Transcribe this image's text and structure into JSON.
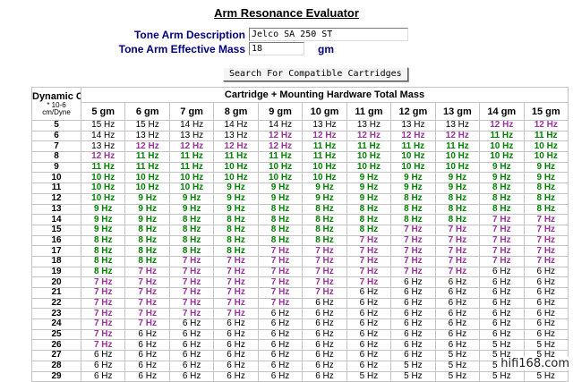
{
  "page": {
    "title": "Arm Resonance Evaluator",
    "watermark": "hifi168.com"
  },
  "form": {
    "description_label": "Tone Arm Description",
    "description_value": "Jelco SA 250 ST",
    "mass_label": "Tone Arm Effective Mass",
    "mass_value": "18",
    "mass_unit": "gm",
    "search_button": "Search For Compatible Cartridges"
  },
  "table": {
    "compliance_header": "Dynamic Compliance",
    "compliance_sub1": "* 10-6",
    "compliance_sub2": "cm/Dyne",
    "mass_header": "Cartridge + Mounting Hardware Total Mass",
    "mass_columns": [
      "5 gm",
      "6 gm",
      "7 gm",
      "8 gm",
      "9 gm",
      "10 gm",
      "11 gm",
      "12 gm",
      "13 gm",
      "14 gm",
      "15 gm"
    ],
    "unit_suffix": "Hz",
    "colors": {
      "ideal": "#008000",
      "marginal": "#993399",
      "normal": "#000000"
    },
    "color_rules": {
      "ideal_min": 8,
      "ideal_max": 11,
      "marginal_values": [
        7,
        12
      ]
    },
    "rows": [
      {
        "compliance": "5",
        "values": [
          15,
          15,
          14,
          14,
          14,
          13,
          13,
          13,
          13,
          12,
          12
        ]
      },
      {
        "compliance": "6",
        "values": [
          14,
          13,
          13,
          13,
          12,
          12,
          12,
          12,
          12,
          11,
          11
        ]
      },
      {
        "compliance": "7",
        "values": [
          13,
          12,
          12,
          12,
          12,
          11,
          11,
          11,
          11,
          10,
          10
        ]
      },
      {
        "compliance": "8",
        "values": [
          12,
          11,
          11,
          11,
          11,
          11,
          10,
          10,
          10,
          10,
          10
        ]
      },
      {
        "compliance": "9",
        "values": [
          11,
          11,
          11,
          10,
          10,
          10,
          10,
          10,
          10,
          9,
          9
        ]
      },
      {
        "compliance": "10",
        "values": [
          10,
          10,
          10,
          10,
          10,
          10,
          9,
          9,
          9,
          9,
          9
        ]
      },
      {
        "compliance": "11",
        "values": [
          10,
          10,
          10,
          9,
          9,
          9,
          9,
          9,
          9,
          8,
          8
        ]
      },
      {
        "compliance": "12",
        "values": [
          10,
          9,
          9,
          9,
          9,
          9,
          9,
          8,
          8,
          8,
          8
        ]
      },
      {
        "compliance": "13",
        "values": [
          9,
          9,
          9,
          9,
          8,
          8,
          8,
          8,
          8,
          8,
          8
        ]
      },
      {
        "compliance": "14",
        "values": [
          9,
          9,
          8,
          8,
          8,
          8,
          8,
          8,
          8,
          7,
          7
        ]
      },
      {
        "compliance": "15",
        "values": [
          9,
          8,
          8,
          8,
          8,
          8,
          8,
          7,
          7,
          7,
          7
        ]
      },
      {
        "compliance": "16",
        "values": [
          8,
          8,
          8,
          8,
          8,
          8,
          7,
          7,
          7,
          7,
          7
        ]
      },
      {
        "compliance": "17",
        "values": [
          8,
          8,
          8,
          8,
          7,
          7,
          7,
          7,
          7,
          7,
          7
        ]
      },
      {
        "compliance": "18",
        "values": [
          8,
          8,
          7,
          7,
          7,
          7,
          7,
          7,
          7,
          7,
          7
        ]
      },
      {
        "compliance": "19",
        "values": [
          8,
          7,
          7,
          7,
          7,
          7,
          7,
          7,
          7,
          6,
          6
        ]
      },
      {
        "compliance": "20",
        "values": [
          7,
          7,
          7,
          7,
          7,
          7,
          7,
          6,
          6,
          6,
          6
        ]
      },
      {
        "compliance": "21",
        "values": [
          7,
          7,
          7,
          7,
          7,
          7,
          6,
          6,
          6,
          6,
          6
        ]
      },
      {
        "compliance": "22",
        "values": [
          7,
          7,
          7,
          7,
          7,
          6,
          6,
          6,
          6,
          6,
          6
        ]
      },
      {
        "compliance": "23",
        "values": [
          7,
          7,
          7,
          7,
          6,
          6,
          6,
          6,
          6,
          6,
          6
        ]
      },
      {
        "compliance": "24",
        "values": [
          7,
          7,
          6,
          6,
          6,
          6,
          6,
          6,
          6,
          6,
          6
        ]
      },
      {
        "compliance": "25",
        "values": [
          7,
          6,
          6,
          6,
          6,
          6,
          6,
          6,
          6,
          6,
          6
        ]
      },
      {
        "compliance": "26",
        "values": [
          7,
          6,
          6,
          6,
          6,
          6,
          6,
          6,
          6,
          5,
          5
        ]
      },
      {
        "compliance": "27",
        "values": [
          6,
          6,
          6,
          6,
          6,
          6,
          6,
          6,
          5,
          5,
          5
        ]
      },
      {
        "compliance": "28",
        "values": [
          6,
          6,
          6,
          6,
          6,
          6,
          6,
          5,
          5,
          5,
          5
        ]
      },
      {
        "compliance": "29",
        "values": [
          6,
          6,
          6,
          6,
          6,
          6,
          5,
          5,
          5,
          5,
          5
        ]
      }
    ]
  }
}
